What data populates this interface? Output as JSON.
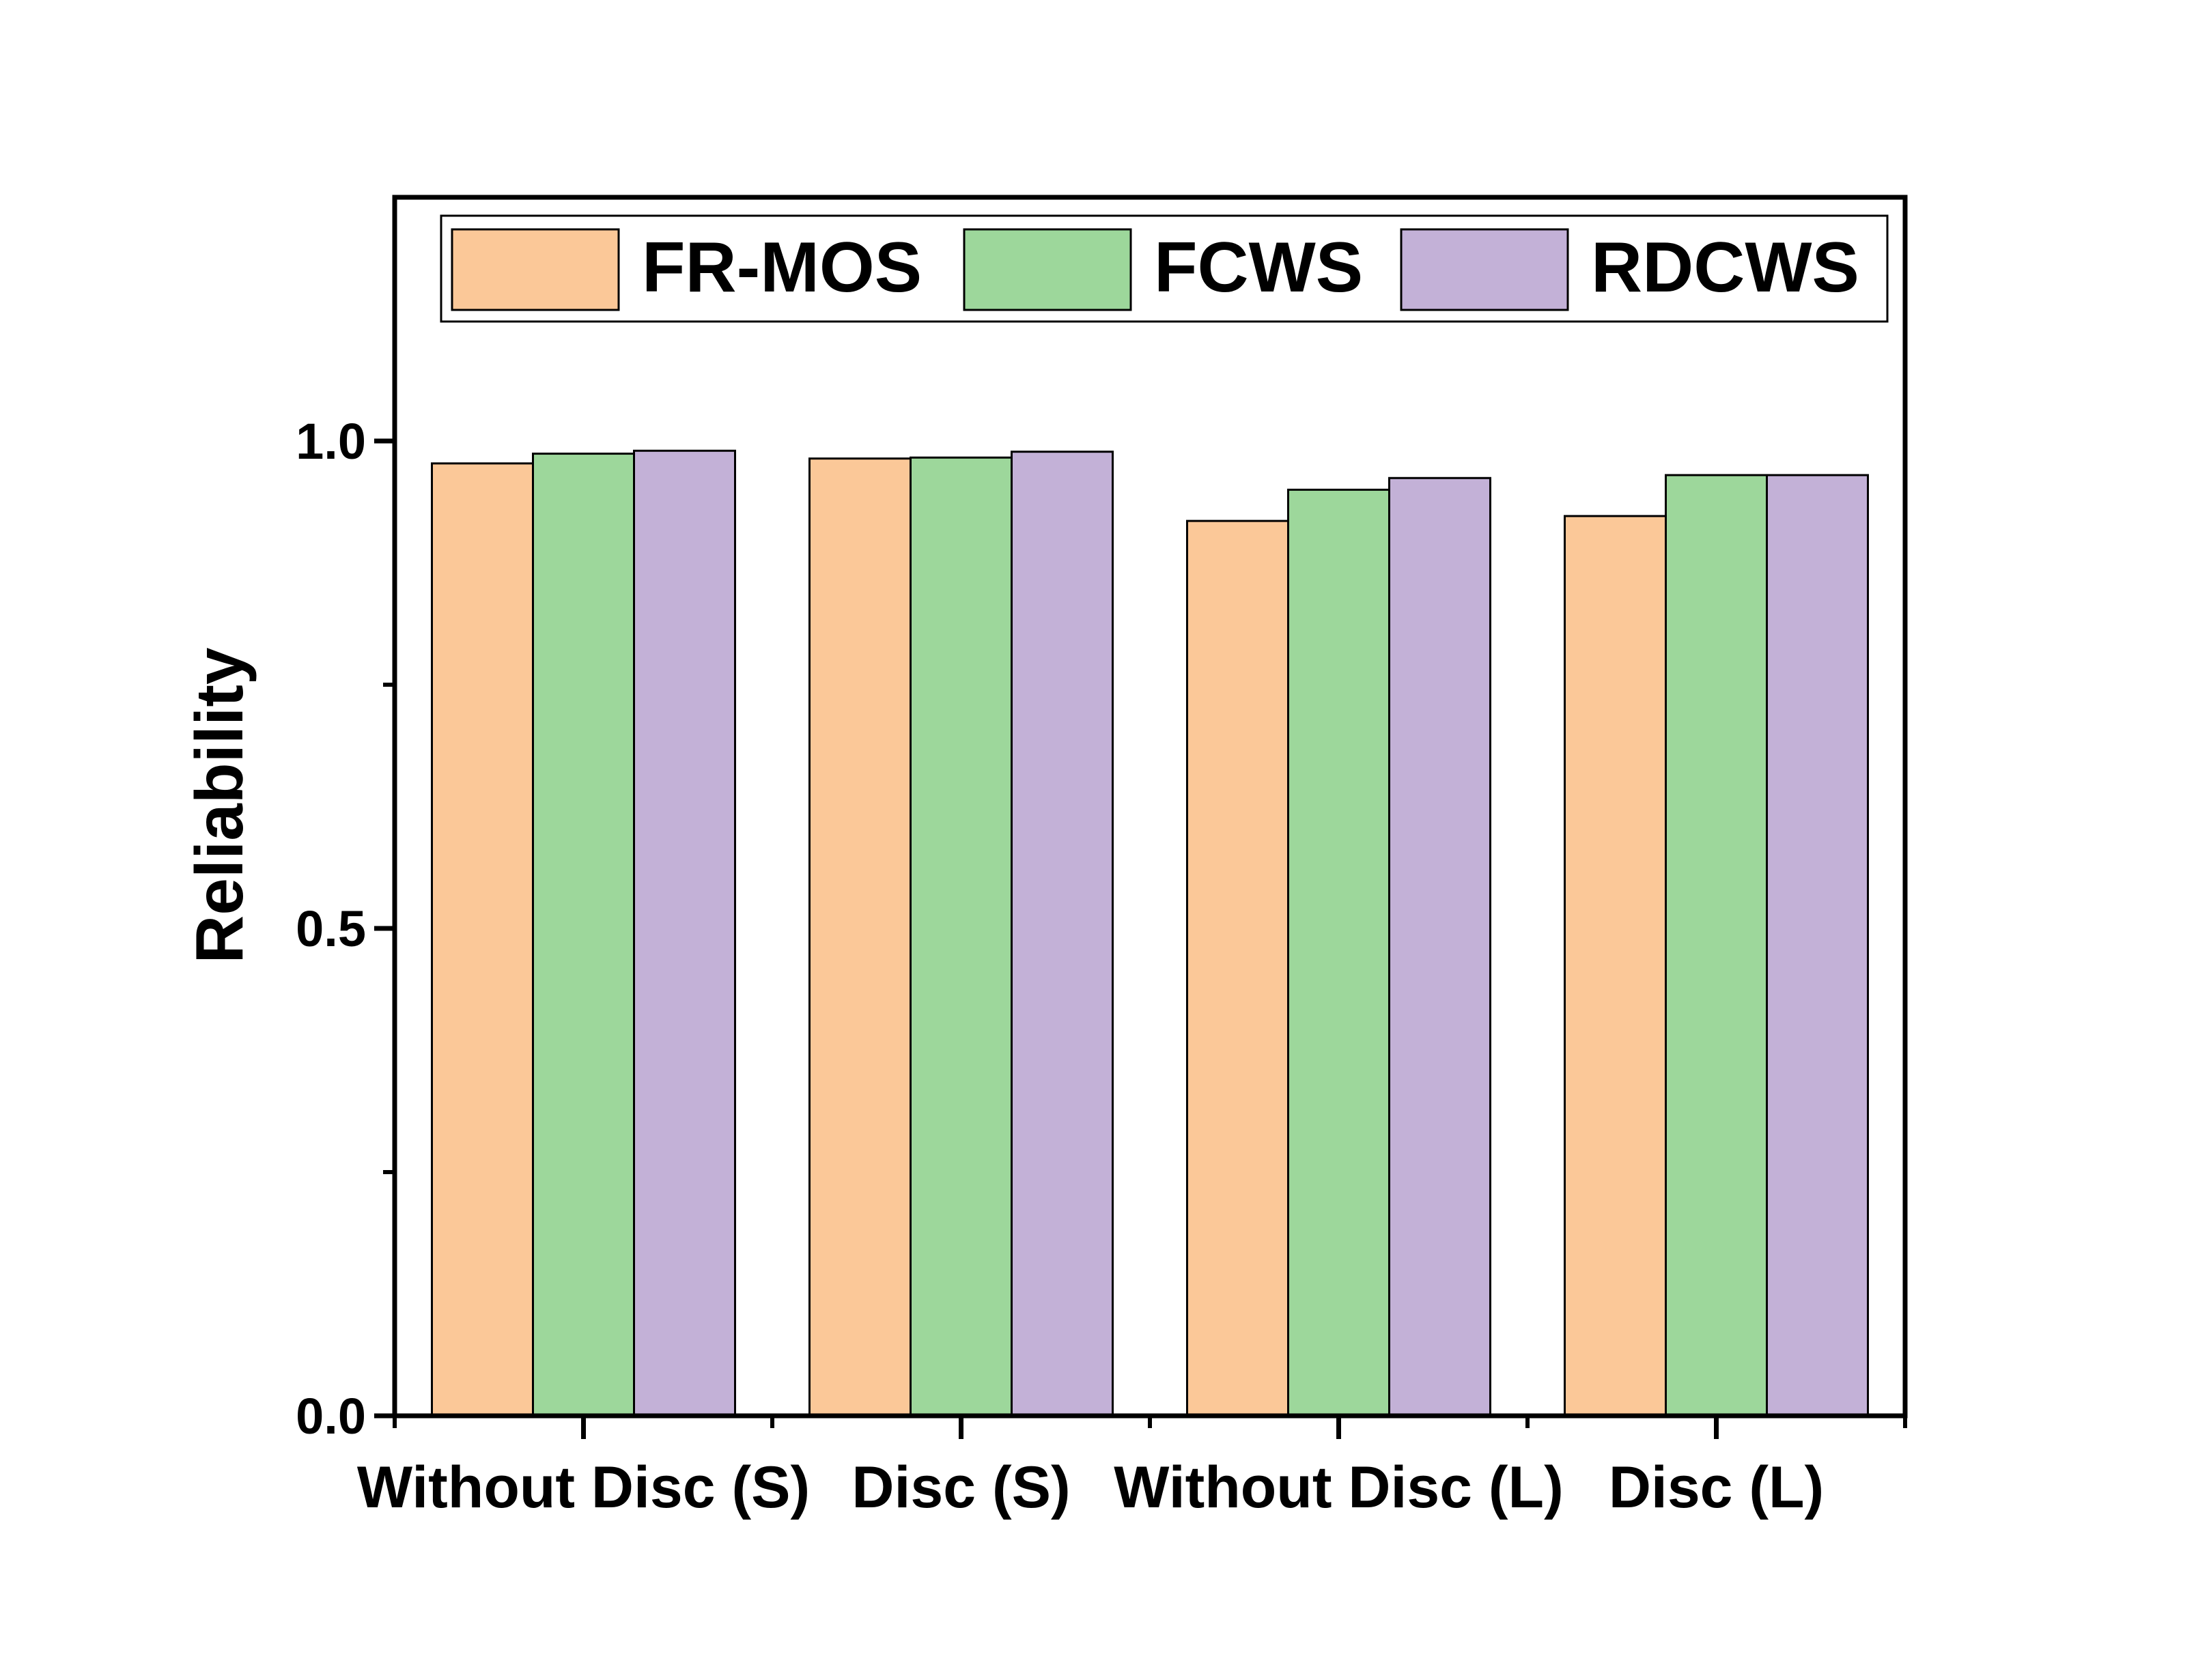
{
  "chart_data": {
    "type": "bar",
    "title": "",
    "xlabel": "",
    "ylabel": "Reliability",
    "ylim": [
      0,
      1.25
    ],
    "yticks": [
      {
        "value": 0.0,
        "label": "0.0"
      },
      {
        "value": 0.5,
        "label": "0.5"
      },
      {
        "value": 1.0,
        "label": "1.0"
      }
    ],
    "yminor": [
      0.25,
      0.75
    ],
    "categories": [
      "Without Disc (S)",
      "Disc (S)",
      "Without Disc (L)",
      "Disc (L)"
    ],
    "series": [
      {
        "name": "FR-MOS",
        "color": "#FBC898",
        "values": [
          0.977,
          0.982,
          0.918,
          0.923
        ]
      },
      {
        "name": "FCWS",
        "color": "#9DD79B",
        "values": [
          0.987,
          0.983,
          0.95,
          0.965
        ]
      },
      {
        "name": "RDCWS",
        "color": "#C3B1D7",
        "values": [
          0.99,
          0.989,
          0.962,
          0.965
        ]
      }
    ],
    "legend_position": "top",
    "grid": false
  }
}
